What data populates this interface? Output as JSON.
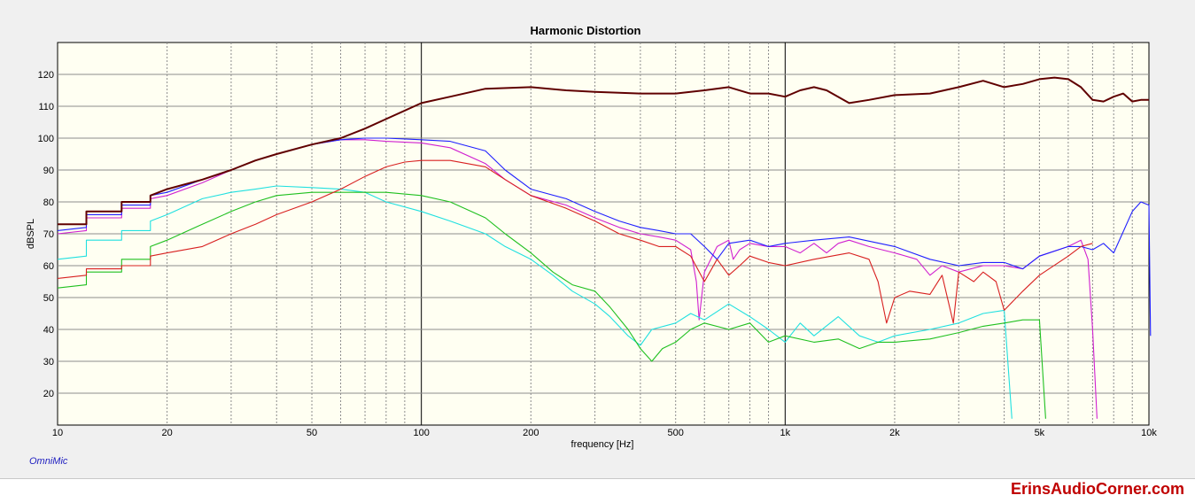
{
  "chart_data": {
    "type": "line",
    "title": "Harmonic Distortion",
    "xlabel": "frequency [Hz]",
    "ylabel": "dBSPL",
    "xscale": "log",
    "xlim": [
      10,
      10000
    ],
    "ylim": [
      10,
      130
    ],
    "grid": true,
    "x_tick_labels": [
      {
        "v": 10,
        "t": "10"
      },
      {
        "v": 20,
        "t": "20"
      },
      {
        "v": 50,
        "t": "50"
      },
      {
        "v": 100,
        "t": "100"
      },
      {
        "v": 200,
        "t": "200"
      },
      {
        "v": 500,
        "t": "500"
      },
      {
        "v": 1000,
        "t": "1k"
      },
      {
        "v": 2000,
        "t": "2k"
      },
      {
        "v": 5000,
        "t": "5k"
      },
      {
        "v": 10000,
        "t": "10k"
      }
    ],
    "y_tick_labels": [
      20,
      30,
      40,
      50,
      60,
      70,
      80,
      90,
      100,
      110,
      120
    ],
    "series": [
      {
        "color": "#d020d0",
        "points": [
          [
            10,
            70
          ],
          [
            12,
            71
          ],
          [
            12,
            75
          ],
          [
            15,
            75
          ],
          [
            15,
            78
          ],
          [
            18,
            78
          ],
          [
            18,
            81
          ],
          [
            20,
            82
          ],
          [
            25,
            86
          ],
          [
            30,
            90
          ],
          [
            35,
            93
          ],
          [
            40,
            95
          ],
          [
            50,
            98
          ],
          [
            60,
            99.5
          ],
          [
            70,
            99.5
          ],
          [
            80,
            99
          ],
          [
            100,
            98.5
          ],
          [
            120,
            97
          ],
          [
            150,
            92
          ],
          [
            170,
            87
          ],
          [
            200,
            82
          ],
          [
            250,
            79
          ],
          [
            300,
            75
          ],
          [
            350,
            72
          ],
          [
            400,
            70
          ],
          [
            450,
            69
          ],
          [
            500,
            68
          ],
          [
            550,
            65
          ],
          [
            570,
            55
          ],
          [
            580,
            43
          ],
          [
            600,
            58
          ],
          [
            650,
            66
          ],
          [
            700,
            68
          ],
          [
            720,
            62
          ],
          [
            750,
            65
          ],
          [
            800,
            67
          ],
          [
            900,
            66
          ],
          [
            1000,
            66
          ],
          [
            1100,
            64
          ],
          [
            1200,
            67
          ],
          [
            1300,
            64
          ],
          [
            1400,
            67
          ],
          [
            1500,
            68
          ],
          [
            1700,
            66
          ],
          [
            2000,
            64
          ],
          [
            2300,
            62
          ],
          [
            2500,
            57
          ],
          [
            2700,
            60
          ],
          [
            3000,
            58
          ],
          [
            3500,
            60
          ],
          [
            4000,
            60
          ],
          [
            4500,
            59
          ],
          [
            5000,
            63
          ],
          [
            6000,
            66
          ],
          [
            6500,
            68
          ],
          [
            6800,
            62
          ],
          [
            7000,
            40
          ],
          [
            7200,
            12
          ]
        ]
      },
      {
        "color": "#2020ff",
        "points": [
          [
            10,
            71
          ],
          [
            12,
            72
          ],
          [
            12,
            76
          ],
          [
            15,
            76
          ],
          [
            15,
            79
          ],
          [
            18,
            79
          ],
          [
            18,
            82
          ],
          [
            20,
            83
          ],
          [
            25,
            87
          ],
          [
            30,
            90
          ],
          [
            35,
            93
          ],
          [
            40,
            95
          ],
          [
            50,
            98
          ],
          [
            60,
            99.5
          ],
          [
            70,
            100
          ],
          [
            80,
            100
          ],
          [
            100,
            99.5
          ],
          [
            120,
            99
          ],
          [
            150,
            96
          ],
          [
            170,
            90
          ],
          [
            200,
            84
          ],
          [
            250,
            81
          ],
          [
            300,
            77
          ],
          [
            350,
            74
          ],
          [
            400,
            72
          ],
          [
            450,
            71
          ],
          [
            500,
            70
          ],
          [
            550,
            70
          ],
          [
            600,
            66
          ],
          [
            650,
            62
          ],
          [
            700,
            67
          ],
          [
            800,
            68
          ],
          [
            900,
            66
          ],
          [
            1000,
            67
          ],
          [
            1200,
            68
          ],
          [
            1500,
            69
          ],
          [
            2000,
            66
          ],
          [
            2500,
            62
          ],
          [
            3000,
            60
          ],
          [
            3500,
            61
          ],
          [
            4000,
            61
          ],
          [
            4500,
            59
          ],
          [
            5000,
            63
          ],
          [
            6000,
            66
          ],
          [
            6500,
            66
          ],
          [
            7000,
            65
          ],
          [
            7500,
            67
          ],
          [
            8000,
            64
          ],
          [
            9000,
            77
          ],
          [
            9500,
            80
          ],
          [
            10000,
            79
          ],
          [
            10100,
            38
          ]
        ]
      },
      {
        "color": "#20e0e0",
        "points": [
          [
            10,
            62
          ],
          [
            12,
            63
          ],
          [
            12,
            68
          ],
          [
            15,
            68
          ],
          [
            15,
            71
          ],
          [
            18,
            71
          ],
          [
            18,
            74
          ],
          [
            20,
            76
          ],
          [
            25,
            81
          ],
          [
            30,
            83
          ],
          [
            35,
            84
          ],
          [
            40,
            85
          ],
          [
            50,
            84.5
          ],
          [
            60,
            84
          ],
          [
            70,
            83
          ],
          [
            80,
            80
          ],
          [
            100,
            77
          ],
          [
            120,
            74
          ],
          [
            150,
            70
          ],
          [
            170,
            66
          ],
          [
            200,
            62
          ],
          [
            230,
            57
          ],
          [
            260,
            52
          ],
          [
            300,
            48
          ],
          [
            330,
            44
          ],
          [
            370,
            38
          ],
          [
            400,
            35
          ],
          [
            430,
            40
          ],
          [
            500,
            42
          ],
          [
            550,
            45
          ],
          [
            600,
            43
          ],
          [
            700,
            48
          ],
          [
            800,
            44
          ],
          [
            900,
            40
          ],
          [
            1000,
            36
          ],
          [
            1100,
            42
          ],
          [
            1200,
            38
          ],
          [
            1400,
            44
          ],
          [
            1600,
            38
          ],
          [
            1800,
            36
          ],
          [
            2000,
            38
          ],
          [
            2500,
            40
          ],
          [
            3000,
            42
          ],
          [
            3500,
            45
          ],
          [
            4000,
            46
          ],
          [
            4200,
            12
          ]
        ]
      },
      {
        "color": "#20c020",
        "points": [
          [
            10,
            53
          ],
          [
            12,
            54
          ],
          [
            12,
            58
          ],
          [
            15,
            58
          ],
          [
            15,
            62
          ],
          [
            18,
            62
          ],
          [
            18,
            66
          ],
          [
            20,
            68
          ],
          [
            25,
            73
          ],
          [
            30,
            77
          ],
          [
            35,
            80
          ],
          [
            40,
            82
          ],
          [
            50,
            83
          ],
          [
            60,
            83
          ],
          [
            70,
            83
          ],
          [
            80,
            83
          ],
          [
            100,
            82
          ],
          [
            120,
            80
          ],
          [
            150,
            75
          ],
          [
            170,
            70
          ],
          [
            200,
            64
          ],
          [
            230,
            58
          ],
          [
            260,
            54
          ],
          [
            300,
            52
          ],
          [
            330,
            47
          ],
          [
            370,
            40
          ],
          [
            400,
            34
          ],
          [
            430,
            30
          ],
          [
            460,
            34
          ],
          [
            500,
            36
          ],
          [
            550,
            40
          ],
          [
            600,
            42
          ],
          [
            700,
            40
          ],
          [
            800,
            42
          ],
          [
            900,
            36
          ],
          [
            1000,
            38
          ],
          [
            1200,
            36
          ],
          [
            1400,
            37
          ],
          [
            1600,
            34
          ],
          [
            1800,
            36
          ],
          [
            2000,
            36
          ],
          [
            2500,
            37
          ],
          [
            3000,
            39
          ],
          [
            3500,
            41
          ],
          [
            4000,
            42
          ],
          [
            4500,
            43
          ],
          [
            5000,
            43
          ],
          [
            5200,
            12
          ]
        ]
      },
      {
        "color": "#d82020",
        "points": [
          [
            10,
            56
          ],
          [
            12,
            57
          ],
          [
            12,
            59
          ],
          [
            15,
            59
          ],
          [
            15,
            60
          ],
          [
            18,
            60
          ],
          [
            18,
            63
          ],
          [
            20,
            64
          ],
          [
            25,
            66
          ],
          [
            30,
            70
          ],
          [
            35,
            73
          ],
          [
            40,
            76
          ],
          [
            50,
            80
          ],
          [
            60,
            84
          ],
          [
            70,
            88
          ],
          [
            80,
            91
          ],
          [
            90,
            92.5
          ],
          [
            100,
            93
          ],
          [
            120,
            93
          ],
          [
            150,
            91
          ],
          [
            170,
            87
          ],
          [
            200,
            82
          ],
          [
            250,
            78
          ],
          [
            300,
            74
          ],
          [
            350,
            70
          ],
          [
            400,
            68
          ],
          [
            450,
            66
          ],
          [
            500,
            66
          ],
          [
            550,
            63
          ],
          [
            600,
            55
          ],
          [
            650,
            62
          ],
          [
            700,
            57
          ],
          [
            750,
            60
          ],
          [
            800,
            63
          ],
          [
            900,
            61
          ],
          [
            1000,
            60
          ],
          [
            1200,
            62
          ],
          [
            1500,
            64
          ],
          [
            1700,
            62
          ],
          [
            1800,
            55
          ],
          [
            1900,
            42
          ],
          [
            2000,
            50
          ],
          [
            2200,
            52
          ],
          [
            2500,
            51
          ],
          [
            2700,
            57
          ],
          [
            2900,
            42
          ],
          [
            3000,
            58
          ],
          [
            3300,
            55
          ],
          [
            3500,
            58
          ],
          [
            3800,
            55
          ],
          [
            4000,
            46
          ],
          [
            4500,
            52
          ],
          [
            5000,
            57
          ],
          [
            6000,
            63
          ],
          [
            6500,
            66
          ],
          [
            7000,
            67
          ]
        ]
      },
      {
        "color": "#600000",
        "points": [
          [
            10,
            73
          ],
          [
            12,
            73
          ],
          [
            12,
            77
          ],
          [
            15,
            77
          ],
          [
            15,
            80
          ],
          [
            18,
            80
          ],
          [
            18,
            82
          ],
          [
            20,
            84
          ],
          [
            25,
            87
          ],
          [
            30,
            90
          ],
          [
            35,
            93
          ],
          [
            40,
            95
          ],
          [
            50,
            98
          ],
          [
            60,
            100
          ],
          [
            70,
            103
          ],
          [
            80,
            106
          ],
          [
            100,
            111
          ],
          [
            120,
            113
          ],
          [
            150,
            115.5
          ],
          [
            200,
            116
          ],
          [
            250,
            115
          ],
          [
            300,
            114.5
          ],
          [
            400,
            114
          ],
          [
            500,
            114
          ],
          [
            600,
            115
          ],
          [
            700,
            116
          ],
          [
            800,
            114
          ],
          [
            900,
            114
          ],
          [
            1000,
            113
          ],
          [
            1100,
            115
          ],
          [
            1200,
            116
          ],
          [
            1300,
            115
          ],
          [
            1500,
            111
          ],
          [
            1700,
            112
          ],
          [
            2000,
            113.5
          ],
          [
            2500,
            114
          ],
          [
            3000,
            116
          ],
          [
            3500,
            118
          ],
          [
            4000,
            116
          ],
          [
            4500,
            117
          ],
          [
            5000,
            118.5
          ],
          [
            5500,
            119
          ],
          [
            6000,
            118.5
          ],
          [
            6500,
            116
          ],
          [
            7000,
            112
          ],
          [
            7500,
            111.5
          ],
          [
            8000,
            113
          ],
          [
            8500,
            114
          ],
          [
            9000,
            111.5
          ],
          [
            9500,
            112
          ],
          [
            10000,
            112
          ]
        ]
      }
    ]
  },
  "footer": {
    "brand": "OmniMic",
    "site": "ErinsAudioCorner.com"
  }
}
